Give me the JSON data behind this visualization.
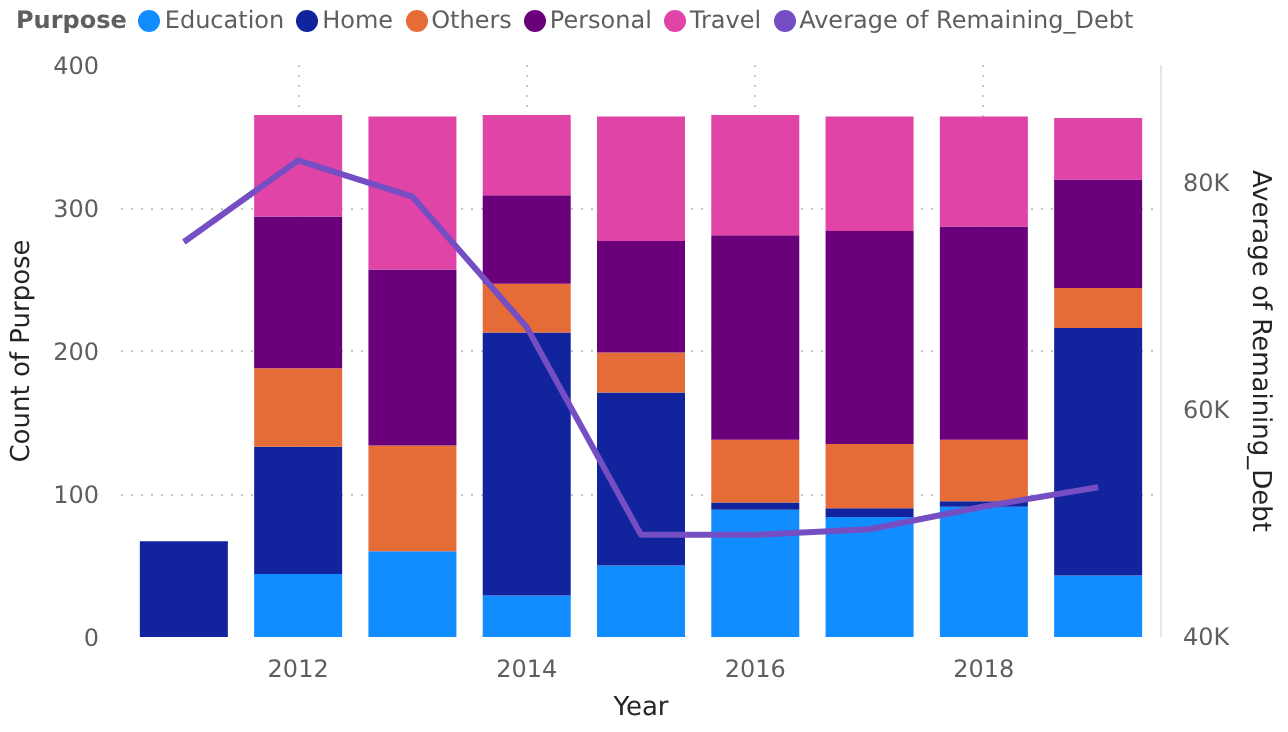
{
  "chart_data": {
    "type": "bar",
    "stacked": true,
    "xlabel": "Year",
    "ylabel": "Count of Purpose",
    "y2label": "Average of Remaining_Debt",
    "legend_title": "Purpose",
    "legend": "top",
    "x": [
      2011,
      2012,
      2013,
      2014,
      2015,
      2016,
      2017,
      2018,
      2019
    ],
    "xlim": [
      2010.45,
      2019.55
    ],
    "xticks": [
      2012,
      2014,
      2016,
      2018
    ],
    "ylim": [
      0,
      400
    ],
    "yticks": [
      0,
      100,
      200,
      300,
      400
    ],
    "y2lim": [
      40000,
      90400
    ],
    "y2ticks": [
      {
        "value": 40000,
        "label": "40K"
      },
      {
        "value": 60000,
        "label": "60K"
      },
      {
        "value": 80000,
        "label": "80K"
      }
    ],
    "grid": true,
    "series": [
      {
        "name": "Education",
        "color": "#118dff",
        "values": [
          0,
          44,
          60,
          29,
          50,
          89,
          84,
          91,
          43
        ]
      },
      {
        "name": "Home",
        "color": "#12239e",
        "values": [
          67,
          89,
          0,
          184,
          121,
          5,
          6,
          4,
          173
        ]
      },
      {
        "name": "Others",
        "color": "#e66c37",
        "values": [
          0,
          55,
          74,
          34,
          28,
          44,
          45,
          43,
          28
        ]
      },
      {
        "name": "Personal",
        "color": "#6b007b",
        "values": [
          0,
          106,
          123,
          62,
          78,
          143,
          149,
          149,
          76
        ]
      },
      {
        "name": "Travel",
        "color": "#e044a7",
        "values": [
          0,
          71,
          107,
          56,
          87,
          84,
          80,
          77,
          43
        ]
      },
      {
        "name": "Average of Remaining_Debt",
        "type": "line",
        "axis": "y2",
        "color": "#744ec2",
        "values": [
          74800,
          82000,
          78800,
          67300,
          49000,
          49000,
          49500,
          51500,
          53200
        ]
      }
    ]
  }
}
